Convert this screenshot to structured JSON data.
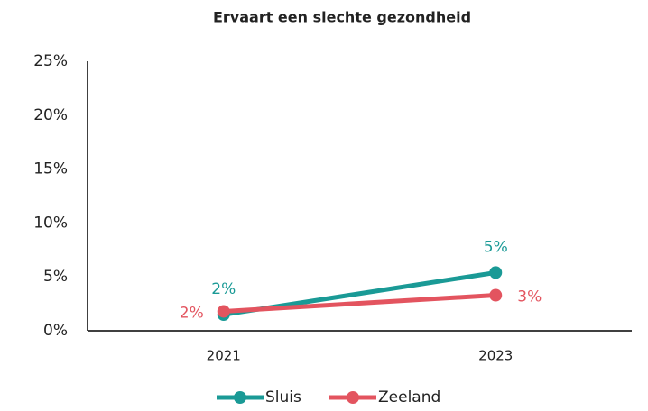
{
  "chart_data": {
    "type": "line",
    "title": "Ervaart een slechte gezondheid",
    "categories": [
      "2021",
      "2023"
    ],
    "series": [
      {
        "name": "Sluis",
        "color": "#1a9a96",
        "values": [
          1.5,
          5.4
        ],
        "value_labels": [
          "2%",
          "5%"
        ]
      },
      {
        "name": "Zeeland",
        "color": "#e3545f",
        "values": [
          1.8,
          3.3
        ],
        "value_labels": [
          "2%",
          "3%"
        ]
      }
    ],
    "ylim": [
      0,
      25
    ],
    "yticks": [
      {
        "value": 0,
        "label": "0%"
      },
      {
        "value": 5,
        "label": "5%"
      },
      {
        "value": 10,
        "label": "10%"
      },
      {
        "value": 15,
        "label": "15%"
      },
      {
        "value": 20,
        "label": "20%"
      },
      {
        "value": 25,
        "label": "25%"
      }
    ],
    "legend": "bottom"
  }
}
